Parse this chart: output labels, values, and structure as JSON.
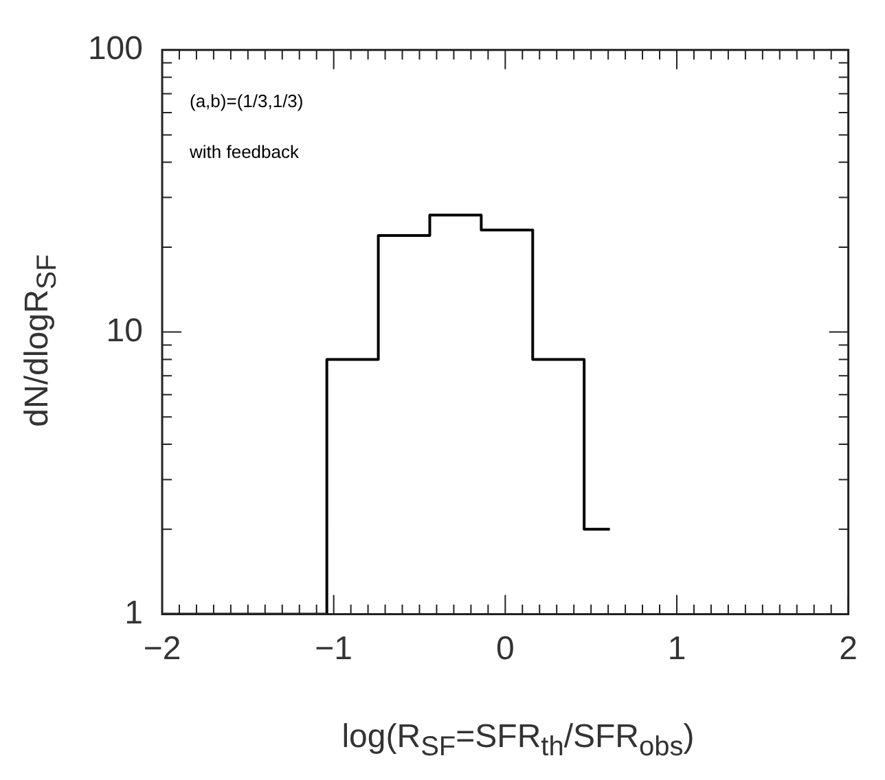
{
  "chart_data": {
    "type": "histogram",
    "xlabel": "log(R$_{SF}$=SFR$_{th}$/SFR$_{obs}$)",
    "ylabel": "dN/dlogR$_{SF}$",
    "annotations": [
      "(a,b)=(1/3,1/3)",
      "with feedback"
    ],
    "bins": [
      -2,
      -1.04,
      -0.74,
      -0.44,
      -0.14,
      0.16,
      0.46,
      0.61
    ],
    "values": [
      1,
      8,
      22,
      26,
      23,
      8,
      2
    ],
    "color": "#000000",
    "log": "y",
    "grid": false,
    "xlim": [
      -2,
      2
    ],
    "ylim": [
      1,
      100
    ],
    "xticks": [
      -2,
      {
        "value": -1.9,
        "label": null
      },
      {
        "value": -1.8,
        "label": null
      },
      {
        "value": -1.7,
        "label": null
      },
      {
        "value": -1.6,
        "label": null
      },
      {
        "value": -1.5,
        "label": null
      },
      {
        "value": -1.4,
        "label": null
      },
      {
        "value": -1.3,
        "label": null
      },
      {
        "value": -1.2,
        "label": null
      },
      {
        "value": -1.1,
        "label": null
      },
      -1,
      {
        "value": -0.9,
        "label": null
      },
      {
        "value": -0.8,
        "label": null
      },
      {
        "value": -0.7,
        "label": null
      },
      {
        "value": -0.6,
        "label": null
      },
      {
        "value": -0.5,
        "label": null
      },
      {
        "value": -0.4,
        "label": null
      },
      {
        "value": -0.3,
        "label": null
      },
      {
        "value": -0.2,
        "label": null
      },
      {
        "value": -0.1,
        "label": null
      },
      0,
      {
        "value": 0.1,
        "label": null
      },
      {
        "value": 0.2,
        "label": null
      },
      {
        "value": 0.3,
        "label": null
      },
      {
        "value": 0.4,
        "label": null
      },
      {
        "value": 0.5,
        "label": null
      },
      {
        "value": 0.6,
        "label": null
      },
      {
        "value": 0.7,
        "label": null
      },
      {
        "value": 0.8,
        "label": null
      },
      {
        "value": 0.9,
        "label": null
      },
      1,
      {
        "value": 1.1,
        "label": null
      },
      {
        "value": 1.2,
        "label": null
      },
      {
        "value": 1.3,
        "label": null
      },
      {
        "value": 1.4,
        "label": null
      },
      {
        "value": 1.5,
        "label": null
      },
      {
        "value": 1.6,
        "label": null
      },
      {
        "value": 1.7,
        "label": null
      },
      {
        "value": 1.8,
        "label": null
      },
      {
        "value": 1.9,
        "label": null
      },
      2
    ],
    "yticks": [
      1,
      {
        "value": 2,
        "label": null
      },
      {
        "value": 3,
        "label": null
      },
      {
        "value": 4,
        "label": null
      },
      {
        "value": 5,
        "label": null
      },
      {
        "value": 6,
        "label": null
      },
      {
        "value": 7,
        "label": null
      },
      {
        "value": 8,
        "label": null
      },
      {
        "value": 9,
        "label": null
      },
      10,
      {
        "value": 20,
        "label": null
      },
      {
        "value": 30,
        "label": null
      },
      {
        "value": 40,
        "label": null
      },
      {
        "value": 50,
        "label": null
      },
      {
        "value": 60,
        "label": null
      },
      {
        "value": 70,
        "label": null
      },
      {
        "value": 80,
        "label": null
      },
      {
        "value": 90,
        "label": null
      },
      100
    ]
  }
}
